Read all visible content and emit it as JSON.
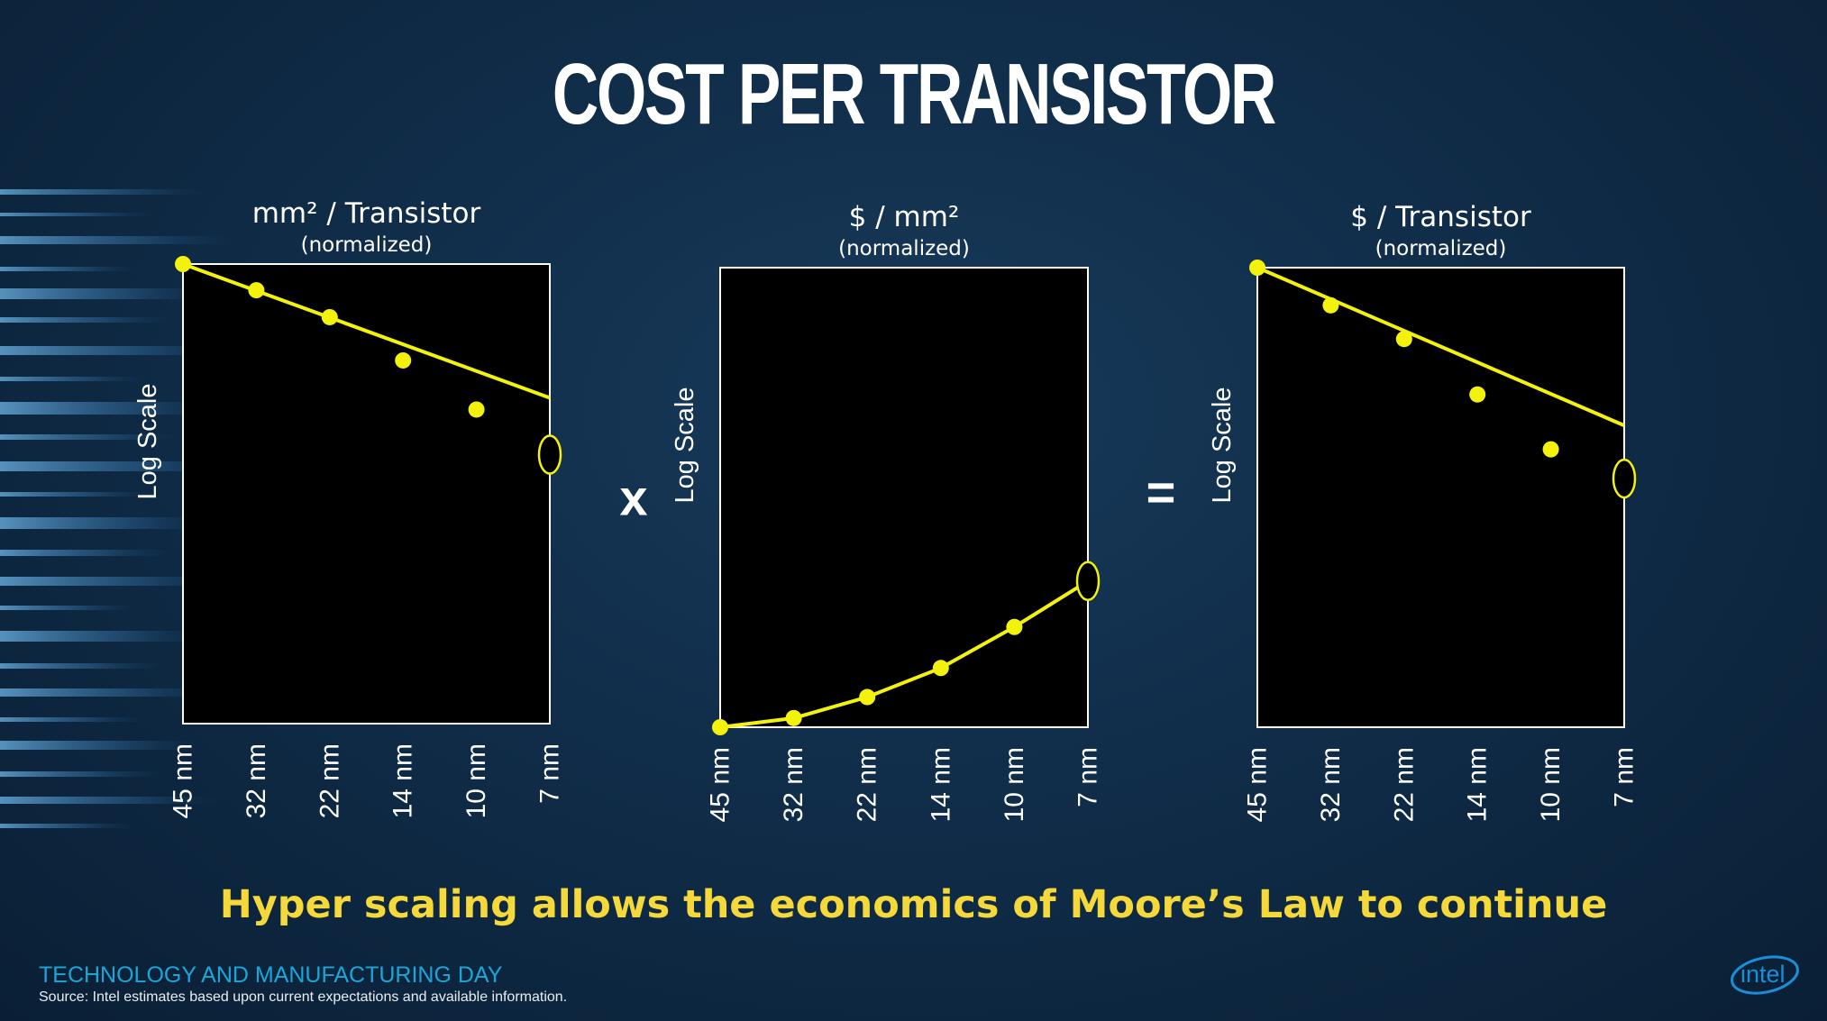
{
  "title": "COST PER TRANSISTOR",
  "tagline": "Hyper scaling allows the economics of Moore’s Law to continue",
  "footer": {
    "event": "TECHNOLOGY AND MANUFACTURING DAY",
    "source": "Source: Intel estimates based upon current expectations and available information.",
    "logo_text": "intel"
  },
  "operators": {
    "times": "x",
    "equals": "="
  },
  "colors": {
    "background": "#102d49",
    "plot_background": "#000000",
    "plot_border": "#ffffff",
    "data": "#f2f20d",
    "tagline": "#f5d83a",
    "footer_event": "#1ba6d9",
    "logo": "#1a8fd8"
  },
  "chart_data": [
    {
      "type": "line",
      "title": "mm² / Transistor",
      "subtitle": "(normalized)",
      "ylabel": "Log Scale",
      "yscale": "log",
      "categories": [
        "45 nm",
        "32 nm",
        "22 nm",
        "14 nm",
        "10 nm",
        "7 nm"
      ],
      "ylim": [
        0.016,
        1
      ],
      "trend_line": {
        "from": 1,
        "to": 0.3
      },
      "series": [
        {
          "values": [
            1,
            0.79,
            0.62,
            0.42,
            0.27,
            null
          ]
        }
      ],
      "highlight": {
        "category": "7 nm",
        "value": 0.18,
        "marker": "open-ellipse"
      },
      "grid": false
    },
    {
      "type": "line",
      "title": "$ / mm²",
      "subtitle": "(normalized)",
      "ylabel": "Log Scale",
      "yscale": "log",
      "categories": [
        "45 nm",
        "32 nm",
        "22 nm",
        "14 nm",
        "10 nm",
        "7 nm"
      ],
      "ylim": [
        1,
        30
      ],
      "series": [
        {
          "values": [
            1,
            1.07,
            1.25,
            1.55,
            2.1,
            null
          ]
        }
      ],
      "highlight": {
        "category": "7 nm",
        "value": 2.95,
        "marker": "open-ellipse"
      },
      "grid": false
    },
    {
      "type": "line",
      "title": "$ / Transistor",
      "subtitle": "(normalized)",
      "ylabel": "Log Scale",
      "yscale": "log",
      "categories": [
        "45 nm",
        "32 nm",
        "22 nm",
        "14 nm",
        "10 nm",
        "7 nm"
      ],
      "ylim": [
        0.03,
        1
      ],
      "trend_line": {
        "from": 1,
        "to": 0.3
      },
      "series": [
        {
          "values": [
            1,
            0.75,
            0.58,
            0.38,
            0.25,
            null
          ]
        }
      ],
      "highlight": {
        "category": "7 nm",
        "value": 0.2,
        "marker": "open-ellipse"
      },
      "grid": false
    }
  ]
}
